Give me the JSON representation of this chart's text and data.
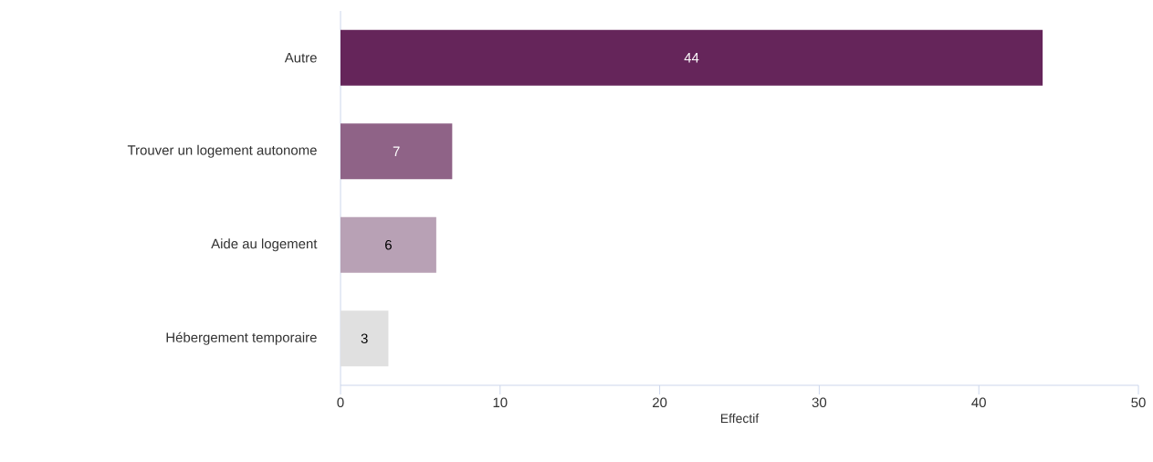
{
  "chart_data": {
    "type": "bar",
    "orientation": "horizontal",
    "xlabel": "Effectif",
    "categories": [
      "Autre",
      "Trouver un logement autonome",
      "Aide au logement",
      "Hébergement temporaire"
    ],
    "values": [
      44,
      7,
      6,
      3
    ],
    "colors": [
      "#65255a",
      "#8f6387",
      "#b8a1b5",
      "#e0e0e0"
    ],
    "xlim": [
      0,
      50
    ],
    "xticks": [
      0,
      10,
      20,
      30,
      40,
      50
    ],
    "data_labels": true
  }
}
